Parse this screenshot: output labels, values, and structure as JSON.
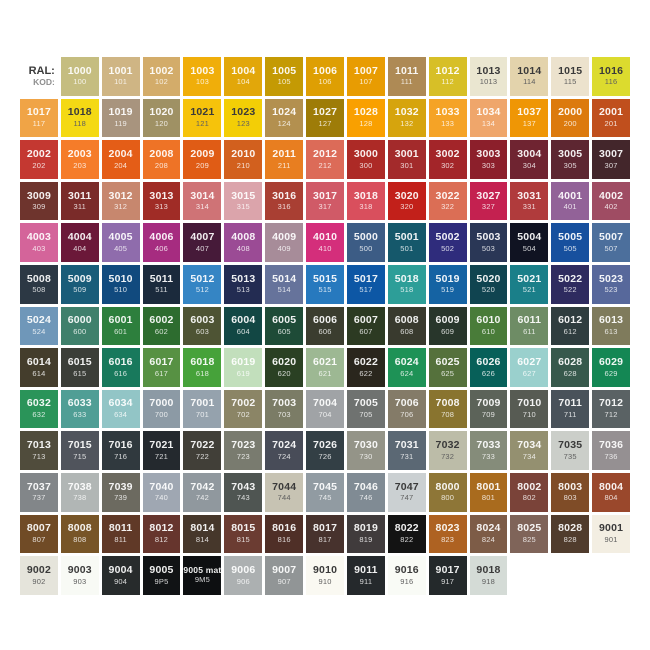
{
  "header": {
    "ral_label": "RAL:",
    "kod_label": "KOD:"
  },
  "chart_data": {
    "type": "table",
    "columns": 15,
    "legend": {
      "top_value": "RAL",
      "bottom_value": "KOD"
    },
    "dark_text_cells": [
      "1013",
      "1014",
      "1015",
      "1016",
      "1018",
      "1021",
      "1023",
      "7032",
      "7035",
      "7044",
      "7047",
      "9001",
      "9002",
      "9003",
      "9010",
      "9016",
      "9018"
    ],
    "rows": [
      [
        {
          "ral": "1000",
          "kod": "100",
          "hex": "#C5BD80"
        },
        {
          "ral": "1001",
          "kod": "101",
          "hex": "#CFB584"
        },
        {
          "ral": "1002",
          "kod": "102",
          "hex": "#D3AC6A"
        },
        {
          "ral": "1003",
          "kod": "103",
          "hex": "#F0AE0A"
        },
        {
          "ral": "1004",
          "kod": "104",
          "hex": "#E2A70A"
        },
        {
          "ral": "1005",
          "kod": "105",
          "hex": "#C49A04"
        },
        {
          "ral": "1006",
          "kod": "106",
          "hex": "#DE9F03"
        },
        {
          "ral": "1007",
          "kod": "107",
          "hex": "#E89C02"
        },
        {
          "ral": "1011",
          "kod": "111",
          "hex": "#AE8A55"
        },
        {
          "ral": "1012",
          "kod": "112",
          "hex": "#D7BF27"
        },
        {
          "ral": "1013",
          "kod": "1013",
          "hex": "#EAE6D0"
        },
        {
          "ral": "1014",
          "kod": "114",
          "hex": "#E3D3AC"
        },
        {
          "ral": "1015",
          "kod": "115",
          "hex": "#ECE2CD"
        },
        {
          "ral": "1016",
          "kod": "116",
          "hex": "#DCDB2E"
        }
      ],
      [
        {
          "ral": "1017",
          "kod": "117",
          "hex": "#F0A446"
        },
        {
          "ral": "1018",
          "kod": "118",
          "hex": "#F4D914"
        },
        {
          "ral": "1019",
          "kod": "119",
          "hex": "#A8947E"
        },
        {
          "ral": "1020",
          "kod": "120",
          "hex": "#9F9164"
        },
        {
          "ral": "1021",
          "kod": "121",
          "hex": "#F6C30B"
        },
        {
          "ral": "1023",
          "kod": "123",
          "hex": "#F3CE06"
        },
        {
          "ral": "1024",
          "kod": "124",
          "hex": "#B3904F"
        },
        {
          "ral": "1027",
          "kod": "127",
          "hex": "#9E7C08"
        },
        {
          "ral": "1028",
          "kod": "128",
          "hex": "#F9A000"
        },
        {
          "ral": "1032",
          "kod": "132",
          "hex": "#D6A40D"
        },
        {
          "ral": "1033",
          "kod": "133",
          "hex": "#F5A326"
        },
        {
          "ral": "1034",
          "kod": "134",
          "hex": "#EFA66B"
        },
        {
          "ral": "1037",
          "kod": "137",
          "hex": "#EF9605"
        },
        {
          "ral": "2000",
          "kod": "200",
          "hex": "#DC7A0E"
        },
        {
          "ral": "2001",
          "kod": "201",
          "hex": "#C04F1D"
        }
      ],
      [
        {
          "ral": "2002",
          "kod": "202",
          "hex": "#C43831"
        },
        {
          "ral": "2003",
          "kod": "203",
          "hex": "#F57C29"
        },
        {
          "ral": "2004",
          "kod": "204",
          "hex": "#E45D17"
        },
        {
          "ral": "2008",
          "kod": "208",
          "hex": "#EE7326"
        },
        {
          "ral": "2009",
          "kod": "209",
          "hex": "#E05C15"
        },
        {
          "ral": "2010",
          "kod": "210",
          "hex": "#D2601E"
        },
        {
          "ral": "2011",
          "kod": "211",
          "hex": "#E87E20"
        },
        {
          "ral": "2012",
          "kod": "212",
          "hex": "#DC6B58"
        },
        {
          "ral": "3000",
          "kod": "300",
          "hex": "#AD2A26"
        },
        {
          "ral": "3001",
          "kod": "301",
          "hex": "#A32A2B"
        },
        {
          "ral": "3002",
          "kod": "302",
          "hex": "#A32529"
        },
        {
          "ral": "3003",
          "kod": "303",
          "hex": "#8C1F2B"
        },
        {
          "ral": "3004",
          "kod": "304",
          "hex": "#6F2431"
        },
        {
          "ral": "3005",
          "kod": "305",
          "hex": "#5D2631"
        },
        {
          "ral": "3007",
          "kod": "307",
          "hex": "#43262B"
        }
      ],
      [
        {
          "ral": "3009",
          "kod": "309",
          "hex": "#6E342D"
        },
        {
          "ral": "3011",
          "kod": "311",
          "hex": "#7A2B29"
        },
        {
          "ral": "3012",
          "kod": "312",
          "hex": "#C7876E"
        },
        {
          "ral": "3013",
          "kod": "313",
          "hex": "#A02C26"
        },
        {
          "ral": "3014",
          "kod": "314",
          "hex": "#CF7376"
        },
        {
          "ral": "3015",
          "kod": "315",
          "hex": "#DBA4AB"
        },
        {
          "ral": "3016",
          "kod": "316",
          "hex": "#A93F33"
        },
        {
          "ral": "3017",
          "kod": "317",
          "hex": "#D05A67"
        },
        {
          "ral": "3018",
          "kod": "318",
          "hex": "#D94F5D"
        },
        {
          "ral": "3020",
          "kod": "320",
          "hex": "#C2201A"
        },
        {
          "ral": "3022",
          "kod": "322",
          "hex": "#DB6E55"
        },
        {
          "ral": "3027",
          "kod": "327",
          "hex": "#C42150"
        },
        {
          "ral": "3031",
          "kod": "331",
          "hex": "#B03B3C"
        },
        {
          "ral": "4001",
          "kod": "401",
          "hex": "#926298"
        },
        {
          "ral": "4002",
          "kod": "402",
          "hex": "#9F4C63"
        }
      ],
      [
        {
          "ral": "4003",
          "kod": "403",
          "hex": "#D4649A"
        },
        {
          "ral": "4004",
          "kod": "404",
          "hex": "#6B1839"
        },
        {
          "ral": "4005",
          "kod": "405",
          "hex": "#8F6CAC"
        },
        {
          "ral": "4006",
          "kod": "406",
          "hex": "#A62C80"
        },
        {
          "ral": "4007",
          "kod": "407",
          "hex": "#461A39"
        },
        {
          "ral": "4008",
          "kod": "408",
          "hex": "#9B4B95"
        },
        {
          "ral": "4009",
          "kod": "409",
          "hex": "#A78C99"
        },
        {
          "ral": "4010",
          "kod": "410",
          "hex": "#D42E7B"
        },
        {
          "ral": "5000",
          "kod": "500",
          "hex": "#3C5C85"
        },
        {
          "ral": "5001",
          "kod": "501",
          "hex": "#15586B"
        },
        {
          "ral": "5002",
          "kod": "502",
          "hex": "#2F2C7C"
        },
        {
          "ral": "5003",
          "kod": "503",
          "hex": "#2A3756"
        },
        {
          "ral": "5004",
          "kod": "504",
          "hex": "#101322"
        },
        {
          "ral": "5005",
          "kod": "505",
          "hex": "#17509E"
        },
        {
          "ral": "5007",
          "kod": "507",
          "hex": "#4C6F9C"
        }
      ],
      [
        {
          "ral": "5008",
          "kod": "508",
          "hex": "#2C3844"
        },
        {
          "ral": "5009",
          "kod": "509",
          "hex": "#195C79"
        },
        {
          "ral": "5010",
          "kod": "510",
          "hex": "#114A7E"
        },
        {
          "ral": "5011",
          "kod": "511",
          "hex": "#1B2A3C"
        },
        {
          "ral": "5012",
          "kod": "512",
          "hex": "#3585C4"
        },
        {
          "ral": "5013",
          "kod": "513",
          "hex": "#232C52"
        },
        {
          "ral": "5014",
          "kod": "514",
          "hex": "#66739B"
        },
        {
          "ral": "5015",
          "kod": "515",
          "hex": "#2779BE"
        },
        {
          "ral": "5017",
          "kod": "517",
          "hex": "#0D57A5"
        },
        {
          "ral": "5018",
          "kod": "518",
          "hex": "#2D9E98"
        },
        {
          "ral": "5019",
          "kod": "519",
          "hex": "#1563A3"
        },
        {
          "ral": "5020",
          "kod": "520",
          "hex": "#104450"
        },
        {
          "ral": "5021",
          "kod": "521",
          "hex": "#1A7F89"
        },
        {
          "ral": "5022",
          "kod": "522",
          "hex": "#2E2B5F"
        },
        {
          "ral": "5023",
          "kod": "523",
          "hex": "#57689B"
        }
      ],
      [
        {
          "ral": "5024",
          "kod": "524",
          "hex": "#6F97B9"
        },
        {
          "ral": "6000",
          "kod": "600",
          "hex": "#3F806C"
        },
        {
          "ral": "6001",
          "kod": "601",
          "hex": "#2D7F3D"
        },
        {
          "ral": "6002",
          "kod": "602",
          "hex": "#2D6C2F"
        },
        {
          "ral": "6003",
          "kod": "603",
          "hex": "#4E5434"
        },
        {
          "ral": "6004",
          "kod": "604",
          "hex": "#124744"
        },
        {
          "ral": "6005",
          "kod": "605",
          "hex": "#1E4B37"
        },
        {
          "ral": "6006",
          "kod": "606",
          "hex": "#3B3D2F"
        },
        {
          "ral": "6007",
          "kod": "607",
          "hex": "#2C3A22"
        },
        {
          "ral": "6008",
          "kod": "608",
          "hex": "#393A2E"
        },
        {
          "ral": "6009",
          "kod": "609",
          "hex": "#28362B"
        },
        {
          "ral": "6010",
          "kod": "610",
          "hex": "#497C39"
        },
        {
          "ral": "6011",
          "kod": "611",
          "hex": "#6E8C65"
        },
        {
          "ral": "6012",
          "kod": "612",
          "hex": "#2F3D3F"
        },
        {
          "ral": "6013",
          "kod": "613",
          "hex": "#7F7B5C"
        }
      ],
      [
        {
          "ral": "6014",
          "kod": "614",
          "hex": "#443D2C"
        },
        {
          "ral": "6015",
          "kod": "615",
          "hex": "#3B3E38"
        },
        {
          "ral": "6016",
          "kod": "616",
          "hex": "#18795C"
        },
        {
          "ral": "6017",
          "kod": "617",
          "hex": "#579143"
        },
        {
          "ral": "6018",
          "kod": "618",
          "hex": "#46A23A"
        },
        {
          "ral": "6019",
          "kod": "619",
          "hex": "#C2DFBC"
        },
        {
          "ral": "6020",
          "kod": "620",
          "hex": "#2A4023"
        },
        {
          "ral": "6021",
          "kod": "621",
          "hex": "#9DB893"
        },
        {
          "ral": "6022",
          "kod": "622",
          "hex": "#2A261D"
        },
        {
          "ral": "6024",
          "kod": "624",
          "hex": "#1E9256"
        },
        {
          "ral": "6025",
          "kod": "625",
          "hex": "#55713C"
        },
        {
          "ral": "6026",
          "kod": "626",
          "hex": "#076059"
        },
        {
          "ral": "6027",
          "kod": "627",
          "hex": "#9AD0CD"
        },
        {
          "ral": "6028",
          "kod": "628",
          "hex": "#37594C"
        },
        {
          "ral": "6029",
          "kod": "629",
          "hex": "#148754"
        }
      ],
      [
        {
          "ral": "6032",
          "kod": "632",
          "hex": "#2A9459"
        },
        {
          "ral": "6033",
          "kod": "633",
          "hex": "#509E95"
        },
        {
          "ral": "6034",
          "kod": "634",
          "hex": "#92C5C6"
        },
        {
          "ral": "7000",
          "kod": "700",
          "hex": "#8C9AA5"
        },
        {
          "ral": "7001",
          "kod": "701",
          "hex": "#95A2AD"
        },
        {
          "ral": "7002",
          "kod": "702",
          "hex": "#8B8566"
        },
        {
          "ral": "7003",
          "kod": "703",
          "hex": "#7B7C66"
        },
        {
          "ral": "7004",
          "kod": "704",
          "hex": "#A0A3A6"
        },
        {
          "ral": "7005",
          "kod": "705",
          "hex": "#6F7270"
        },
        {
          "ral": "7006",
          "kod": "706",
          "hex": "#847B68"
        },
        {
          "ral": "7008",
          "kod": "708",
          "hex": "#89742F"
        },
        {
          "ral": "7009",
          "kod": "709",
          "hex": "#5C6359"
        },
        {
          "ral": "7010",
          "kod": "710",
          "hex": "#575B53"
        },
        {
          "ral": "7011",
          "kod": "711",
          "hex": "#49525A"
        },
        {
          "ral": "7012",
          "kod": "712",
          "hex": "#5A6264"
        }
      ],
      [
        {
          "ral": "7013",
          "kod": "713",
          "hex": "#504C3C"
        },
        {
          "ral": "7015",
          "kod": "715",
          "hex": "#50545C"
        },
        {
          "ral": "7016",
          "kod": "716",
          "hex": "#30393E"
        },
        {
          "ral": "7021",
          "kod": "721",
          "hex": "#24292E"
        },
        {
          "ral": "7022",
          "kod": "722",
          "hex": "#413F38"
        },
        {
          "ral": "7023",
          "kod": "723",
          "hex": "#797B6F"
        },
        {
          "ral": "7024",
          "kod": "724",
          "hex": "#484C58"
        },
        {
          "ral": "7026",
          "kod": "726",
          "hex": "#333F45"
        },
        {
          "ral": "7030",
          "kod": "730",
          "hex": "#949488"
        },
        {
          "ral": "7031",
          "kod": "731",
          "hex": "#5B6874"
        },
        {
          "ral": "7032",
          "kod": "732",
          "hex": "#BCBCA8"
        },
        {
          "ral": "7033",
          "kod": "733",
          "hex": "#858C7A"
        },
        {
          "ral": "7034",
          "kod": "734",
          "hex": "#949070"
        },
        {
          "ral": "7035",
          "kod": "735",
          "hex": "#CBCEC9"
        },
        {
          "ral": "7036",
          "kod": "736",
          "hex": "#959092"
        }
      ],
      [
        {
          "ral": "7037",
          "kod": "737",
          "hex": "#828689"
        },
        {
          "ral": "7038",
          "kod": "738",
          "hex": "#B1B6B5"
        },
        {
          "ral": "7039",
          "kod": "739",
          "hex": "#6C6A60"
        },
        {
          "ral": "7040",
          "kod": "740",
          "hex": "#9FA7B2"
        },
        {
          "ral": "7042",
          "kod": "742",
          "hex": "#90989E"
        },
        {
          "ral": "7043",
          "kod": "743",
          "hex": "#4F5552"
        },
        {
          "ral": "7044",
          "kod": "744",
          "hex": "#C7C3B3"
        },
        {
          "ral": "7045",
          "kod": "745",
          "hex": "#919BA2"
        },
        {
          "ral": "7046",
          "kod": "746",
          "hex": "#808B94"
        },
        {
          "ral": "7047",
          "kod": "747",
          "hex": "#CBD0D2"
        },
        {
          "ral": "8000",
          "kod": "800",
          "hex": "#8E7637"
        },
        {
          "ral": "8001",
          "kod": "801",
          "hex": "#A96B1E"
        },
        {
          "ral": "8002",
          "kod": "802",
          "hex": "#7A4339"
        },
        {
          "ral": "8003",
          "kod": "803",
          "hex": "#7F4C27"
        },
        {
          "ral": "8004",
          "kod": "804",
          "hex": "#9A482C"
        }
      ],
      [
        {
          "ral": "8007",
          "kod": "807",
          "hex": "#704B26"
        },
        {
          "ral": "8008",
          "kod": "808",
          "hex": "#775527"
        },
        {
          "ral": "8011",
          "kod": "811",
          "hex": "#603927"
        },
        {
          "ral": "8012",
          "kod": "812",
          "hex": "#66352D"
        },
        {
          "ral": "8014",
          "kod": "814",
          "hex": "#46372B"
        },
        {
          "ral": "8015",
          "kod": "815",
          "hex": "#6B3C32"
        },
        {
          "ral": "8016",
          "kod": "816",
          "hex": "#4F2F27"
        },
        {
          "ral": "8017",
          "kod": "817",
          "hex": "#47322D"
        },
        {
          "ral": "8019",
          "kod": "819",
          "hex": "#403B3C"
        },
        {
          "ral": "8022",
          "kod": "822",
          "hex": "#131313"
        },
        {
          "ral": "8023",
          "kod": "823",
          "hex": "#AE6222"
        },
        {
          "ral": "8024",
          "kod": "824",
          "hex": "#7D5C47"
        },
        {
          "ral": "8025",
          "kod": "825",
          "hex": "#7F6459"
        },
        {
          "ral": "8028",
          "kod": "828",
          "hex": "#503C2D"
        },
        {
          "ral": "9001",
          "kod": "901",
          "hex": "#F3EEE2"
        }
      ],
      [
        {
          "ral": "9002",
          "kod": "902",
          "hex": "#E5E4DB"
        },
        {
          "ral": "9003",
          "kod": "903",
          "hex": "#F8FAF5"
        },
        {
          "ral": "9004",
          "kod": "904",
          "hex": "#272B2C"
        },
        {
          "ral": "9005",
          "kod": "9P5",
          "hex": "#111315"
        },
        {
          "ral": "9005 mat",
          "kod": "9M5",
          "hex": "#0D0F11"
        },
        {
          "ral": "9006",
          "kod": "906",
          "hex": "#ACB0B1"
        },
        {
          "ral": "9007",
          "kod": "907",
          "hex": "#919596"
        },
        {
          "ral": "9010",
          "kod": "910",
          "hex": "#FAF9F2"
        },
        {
          "ral": "9011",
          "kod": "911",
          "hex": "#25292C"
        },
        {
          "ral": "9016",
          "kod": "916",
          "hex": "#F9FBF6"
        },
        {
          "ral": "9017",
          "kod": "917",
          "hex": "#24292B"
        },
        {
          "ral": "9018",
          "kod": "918",
          "hex": "#D4DBD6"
        }
      ]
    ]
  }
}
